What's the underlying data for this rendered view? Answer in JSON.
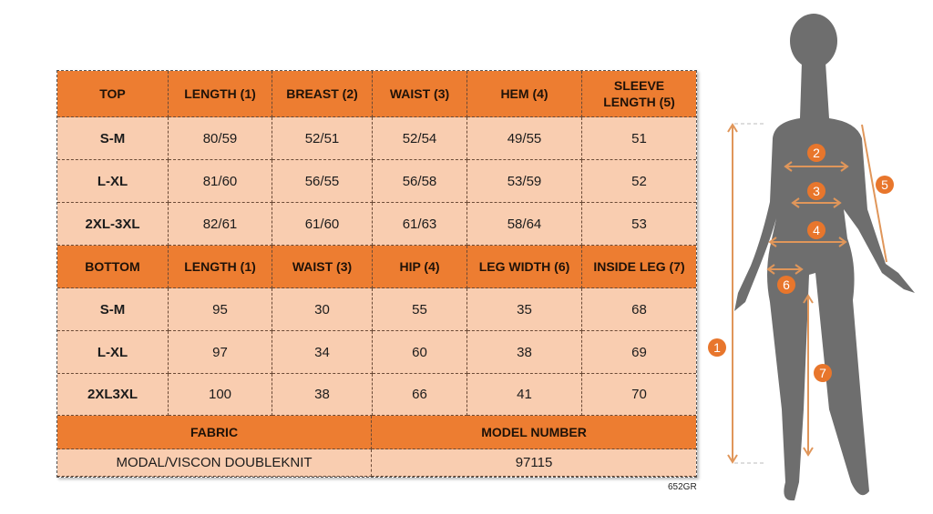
{
  "top": {
    "headers": [
      "TOP",
      "LENGTH (1)",
      "BREAST (2)",
      "WAIST (3)",
      "HEM (4)",
      "SLEEVE LENGTH (5)"
    ],
    "rows": [
      [
        "S-M",
        "80/59",
        "52/51",
        "52/54",
        "49/55",
        "51"
      ],
      [
        "L-XL",
        "81/60",
        "56/55",
        "56/58",
        "53/59",
        "52"
      ],
      [
        "2XL-3XL",
        "82/61",
        "61/60",
        "61/63",
        "58/64",
        "53"
      ]
    ]
  },
  "bottom": {
    "headers": [
      "BOTTOM",
      "LENGTH (1)",
      "WAIST (3)",
      "HIP (4)",
      "LEG WIDTH (6)",
      "INSIDE LEG (7)"
    ],
    "rows": [
      [
        "S-M",
        "95",
        "30",
        "55",
        "35",
        "68"
      ],
      [
        "L-XL",
        "97",
        "34",
        "60",
        "38",
        "69"
      ],
      [
        "2XL3XL",
        "100",
        "38",
        "66",
        "41",
        "70"
      ]
    ]
  },
  "info": {
    "fabric_label": "FABRIC",
    "model_label": "MODEL NUMBER",
    "fabric_value": "MODAL/VISCON DOUBLEKNIT",
    "model_value": "97115"
  },
  "code": "652GR",
  "figure": {
    "markers": [
      "1",
      "2",
      "3",
      "4",
      "5",
      "6",
      "7"
    ]
  },
  "colors": {
    "header": "#ed7d31",
    "cell": "#f9cdb0",
    "silhouette": "#6e6e6e",
    "arrow": "#e0965a"
  }
}
